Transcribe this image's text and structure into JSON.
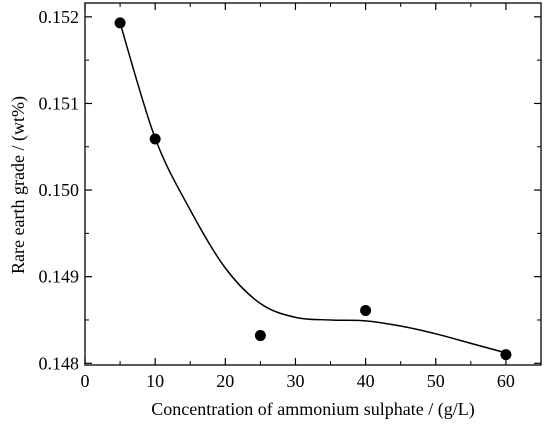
{
  "chart_data": {
    "type": "scatter",
    "xlabel": "Concentration of ammonium sulphate / (g/L)",
    "ylabel": "Rare earth grade / (wt%)",
    "x": [
      5,
      10,
      25,
      40,
      60
    ],
    "values": [
      0.15193,
      0.15059,
      0.14832,
      0.14861,
      0.1481
    ],
    "color": "#000000",
    "curve": {
      "x": [
        5,
        10,
        15,
        20,
        25,
        30,
        35,
        40,
        45,
        50,
        55,
        60
      ],
      "values": [
        0.15193,
        0.1506,
        0.14977,
        0.1491,
        0.14869,
        0.14853,
        0.1485,
        0.14849,
        0.14843,
        0.14834,
        0.14823,
        0.14812
      ]
    },
    "xlim": [
      0,
      65
    ],
    "xticks": [
      0,
      10,
      20,
      30,
      40,
      50,
      60
    ],
    "xminorticks": [
      5,
      15,
      25,
      35,
      45,
      55
    ],
    "ylim": [
      0.14798,
      0.15216
    ],
    "yticks": [
      0.148,
      0.149,
      {
        "value": 0.15,
        "label": "0.150"
      },
      0.151,
      0.152
    ],
    "yminorticks": [
      0.1485,
      0.1495,
      0.1505,
      0.1515
    ]
  }
}
